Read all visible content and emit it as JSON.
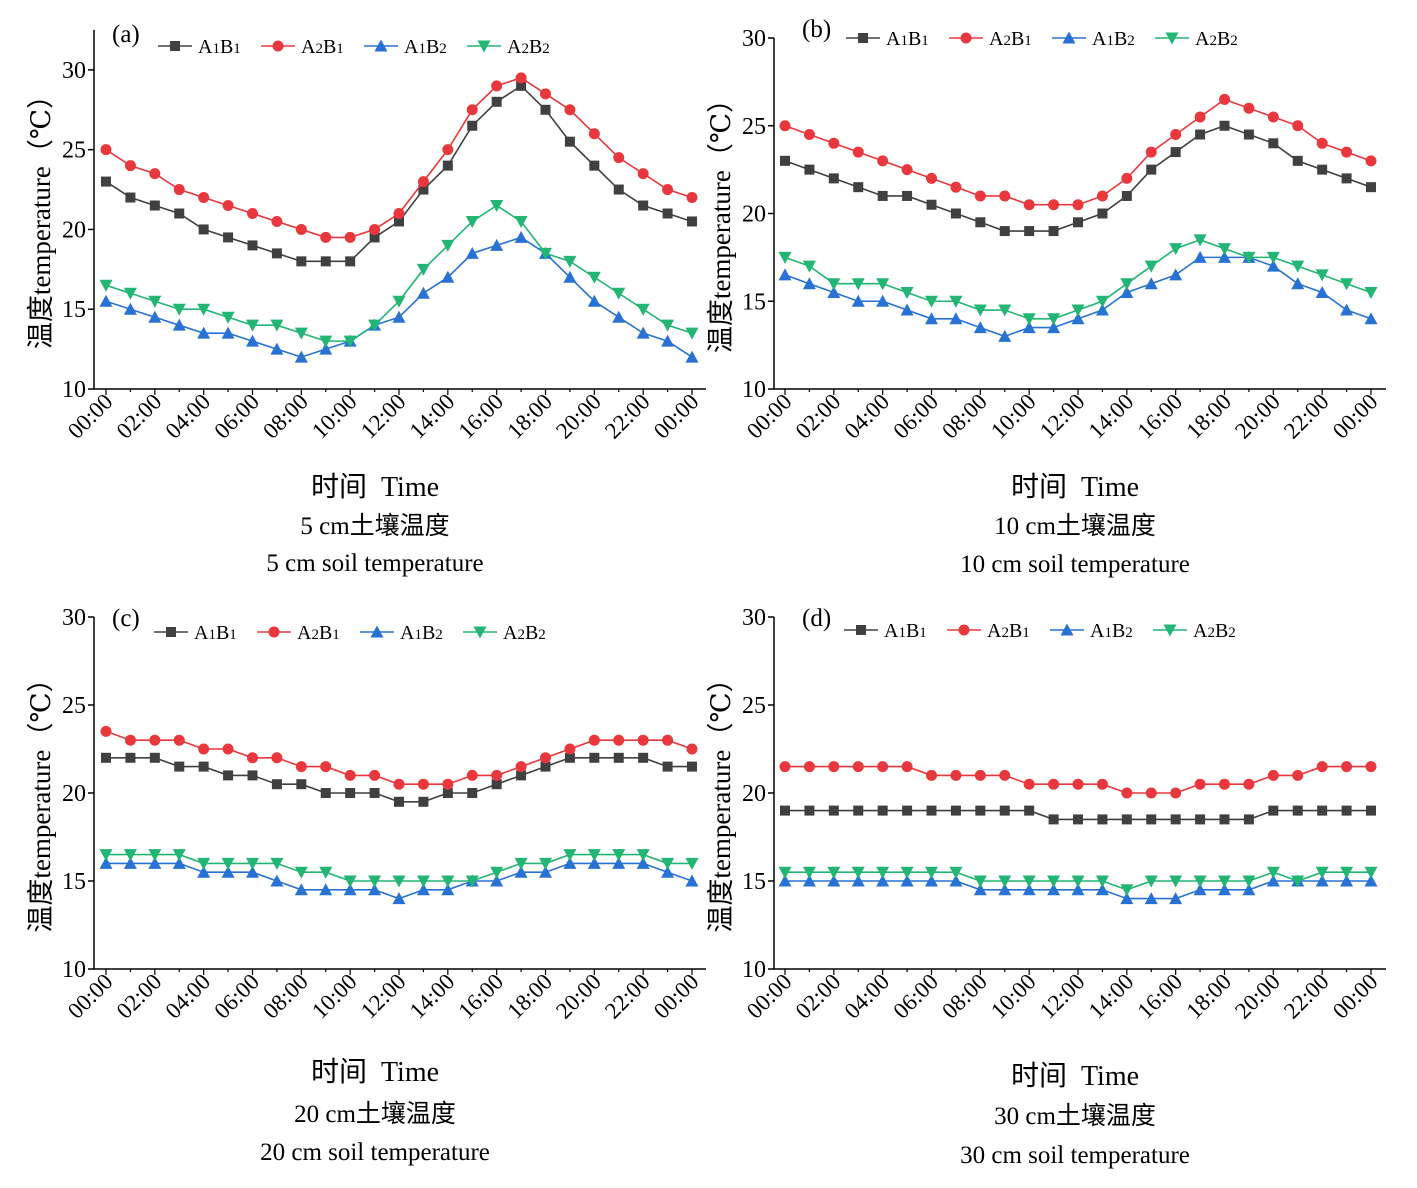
{
  "chart_data": [
    {
      "type": "line",
      "panel_label": "(a)",
      "title": "5 cm土壤温度",
      "subtitle": "5 cm soil temperature",
      "xlabel": "时间  Time",
      "ylabel": "温度temperature（℃）",
      "ylim": [
        10,
        32.5
      ],
      "yticks": [
        10,
        15,
        20,
        25,
        30
      ],
      "x": [
        "00:00",
        "01:00",
        "02:00",
        "03:00",
        "04:00",
        "05:00",
        "06:00",
        "07:00",
        "08:00",
        "09:00",
        "10:00",
        "11:00",
        "12:00",
        "13:00",
        "14:00",
        "15:00",
        "16:00",
        "17:00",
        "18:00",
        "19:00",
        "20:00",
        "21:00",
        "22:00",
        "23:00",
        "00:00"
      ],
      "xtick_labels": [
        "00:00",
        "02:00",
        "04:00",
        "06:00",
        "08:00",
        "10:00",
        "12:00",
        "14:00",
        "16:00",
        "18:00",
        "20:00",
        "22:00",
        "00:00"
      ],
      "legend_position": "top-left",
      "series": [
        {
          "name": "A1B1",
          "color": "#404040",
          "marker": "square",
          "values": [
            23,
            22,
            21.5,
            21,
            20,
            19.5,
            19,
            18.5,
            18,
            18,
            18,
            19.5,
            20.5,
            22.5,
            24,
            26.5,
            28,
            29,
            27.5,
            25.5,
            24,
            22.5,
            21.5,
            21,
            20.5
          ]
        },
        {
          "name": "A2B1",
          "color": "#e8383d",
          "marker": "circle",
          "values": [
            25,
            24,
            23.5,
            22.5,
            22,
            21.5,
            21,
            20.5,
            20,
            19.5,
            19.5,
            20,
            21,
            23,
            25,
            27.5,
            29,
            29.5,
            28.5,
            27.5,
            26,
            24.5,
            23.5,
            22.5,
            22
          ]
        },
        {
          "name": "A1B2",
          "color": "#2872d4",
          "marker": "triangle-up",
          "values": [
            15.5,
            15,
            14.5,
            14,
            13.5,
            13.5,
            13,
            12.5,
            12,
            12.5,
            13,
            14,
            14.5,
            16,
            17,
            18.5,
            19,
            19.5,
            18.5,
            17,
            15.5,
            14.5,
            13.5,
            13,
            12
          ]
        },
        {
          "name": "A2B2",
          "color": "#22b573",
          "marker": "triangle-down",
          "values": [
            16.5,
            16,
            15.5,
            15,
            15,
            14.5,
            14,
            14,
            13.5,
            13,
            13,
            14,
            15.5,
            17.5,
            19,
            20.5,
            21.5,
            20.5,
            18.5,
            18,
            17,
            16,
            15,
            14,
            13.5
          ]
        }
      ]
    },
    {
      "type": "line",
      "panel_label": "(b)",
      "title": "10 cm土壤温度",
      "subtitle": "10 cm soil temperature",
      "xlabel": "时间  Time",
      "ylabel": "温度temperature（℃）",
      "ylim": [
        10,
        30
      ],
      "yticks": [
        10,
        15,
        20,
        25,
        30
      ],
      "x": [
        "00:00",
        "01:00",
        "02:00",
        "03:00",
        "04:00",
        "05:00",
        "06:00",
        "07:00",
        "08:00",
        "09:00",
        "10:00",
        "11:00",
        "12:00",
        "13:00",
        "14:00",
        "15:00",
        "16:00",
        "17:00",
        "18:00",
        "19:00",
        "20:00",
        "21:00",
        "22:00",
        "23:00",
        "00:00"
      ],
      "xtick_labels": [
        "00:00",
        "02:00",
        "04:00",
        "06:00",
        "08:00",
        "10:00",
        "12:00",
        "14:00",
        "16:00",
        "18:00",
        "20:00",
        "22:00",
        "00:00"
      ],
      "legend_position": "top-left",
      "series": [
        {
          "name": "A1B1",
          "color": "#404040",
          "marker": "square",
          "values": [
            23,
            22.5,
            22,
            21.5,
            21,
            21,
            20.5,
            20,
            19.5,
            19,
            19,
            19,
            19.5,
            20,
            21,
            22.5,
            23.5,
            24.5,
            25,
            24.5,
            24,
            23,
            22.5,
            22,
            21.5
          ]
        },
        {
          "name": "A2B1",
          "color": "#e8383d",
          "marker": "circle",
          "values": [
            25,
            24.5,
            24,
            23.5,
            23,
            22.5,
            22,
            21.5,
            21,
            21,
            20.5,
            20.5,
            20.5,
            21,
            22,
            23.5,
            24.5,
            25.5,
            26.5,
            26,
            25.5,
            25,
            24,
            23.5,
            23
          ]
        },
        {
          "name": "A1B2",
          "color": "#2872d4",
          "marker": "triangle-up",
          "values": [
            16.5,
            16,
            15.5,
            15,
            15,
            14.5,
            14,
            14,
            13.5,
            13,
            13.5,
            13.5,
            14,
            14.5,
            15.5,
            16,
            16.5,
            17.5,
            17.5,
            17.5,
            17,
            16,
            15.5,
            14.5,
            14
          ]
        },
        {
          "name": "A2B2",
          "color": "#22b573",
          "marker": "triangle-down",
          "values": [
            17.5,
            17,
            16,
            16,
            16,
            15.5,
            15,
            15,
            14.5,
            14.5,
            14,
            14,
            14.5,
            15,
            16,
            17,
            18,
            18.5,
            18,
            17.5,
            17.5,
            17,
            16.5,
            16,
            15.5
          ]
        }
      ]
    },
    {
      "type": "line",
      "panel_label": "(c)",
      "title": "20 cm土壤温度",
      "subtitle": "20 cm soil temperature",
      "xlabel": "时间  Time",
      "ylabel": "温度temperature（℃）",
      "ylim": [
        10,
        30
      ],
      "yticks": [
        10,
        15,
        20,
        25,
        30
      ],
      "x": [
        "00:00",
        "01:00",
        "02:00",
        "03:00",
        "04:00",
        "05:00",
        "06:00",
        "07:00",
        "08:00",
        "09:00",
        "10:00",
        "11:00",
        "12:00",
        "13:00",
        "14:00",
        "15:00",
        "16:00",
        "17:00",
        "18:00",
        "19:00",
        "20:00",
        "21:00",
        "22:00",
        "23:00",
        "00:00"
      ],
      "xtick_labels": [
        "00:00",
        "02:00",
        "04:00",
        "06:00",
        "08:00",
        "10:00",
        "12:00",
        "14:00",
        "16:00",
        "18:00",
        "20:00",
        "22:00",
        "00:00"
      ],
      "legend_position": "top-left",
      "series": [
        {
          "name": "A1B1",
          "color": "#404040",
          "marker": "square",
          "values": [
            22,
            22,
            22,
            21.5,
            21.5,
            21,
            21,
            20.5,
            20.5,
            20,
            20,
            20,
            19.5,
            19.5,
            20,
            20,
            20.5,
            21,
            21.5,
            22,
            22,
            22,
            22,
            21.5,
            21.5
          ]
        },
        {
          "name": "A2B1",
          "color": "#e8383d",
          "marker": "circle",
          "values": [
            23.5,
            23,
            23,
            23,
            22.5,
            22.5,
            22,
            22,
            21.5,
            21.5,
            21,
            21,
            20.5,
            20.5,
            20.5,
            21,
            21,
            21.5,
            22,
            22.5,
            23,
            23,
            23,
            23,
            22.5
          ]
        },
        {
          "name": "A1B2",
          "color": "#2872d4",
          "marker": "triangle-up",
          "values": [
            16,
            16,
            16,
            16,
            15.5,
            15.5,
            15.5,
            15,
            14.5,
            14.5,
            14.5,
            14.5,
            14,
            14.5,
            14.5,
            15,
            15,
            15.5,
            15.5,
            16,
            16,
            16,
            16,
            15.5,
            15
          ]
        },
        {
          "name": "A2B2",
          "color": "#22b573",
          "marker": "triangle-down",
          "values": [
            16.5,
            16.5,
            16.5,
            16.5,
            16,
            16,
            16,
            16,
            15.5,
            15.5,
            15,
            15,
            15,
            15,
            15,
            15,
            15.5,
            16,
            16,
            16.5,
            16.5,
            16.5,
            16.5,
            16,
            16
          ]
        }
      ]
    },
    {
      "type": "line",
      "panel_label": "(d)",
      "title": "30 cm土壤温度",
      "subtitle": "30 cm soil temperature",
      "xlabel": "时间  Time",
      "ylabel": "温度temperature（℃）",
      "ylim": [
        10,
        30
      ],
      "yticks": [
        10,
        15,
        20,
        25,
        30
      ],
      "x": [
        "00:00",
        "01:00",
        "02:00",
        "03:00",
        "04:00",
        "05:00",
        "06:00",
        "07:00",
        "08:00",
        "09:00",
        "10:00",
        "11:00",
        "12:00",
        "13:00",
        "14:00",
        "15:00",
        "16:00",
        "17:00",
        "18:00",
        "19:00",
        "20:00",
        "21:00",
        "22:00",
        "23:00",
        "00:00"
      ],
      "xtick_labels": [
        "00:00",
        "02:00",
        "04:00",
        "06:00",
        "08:00",
        "10:00",
        "12:00",
        "14:00",
        "16:00",
        "18:00",
        "20:00",
        "22:00",
        "00:00"
      ],
      "legend_position": "top-left",
      "series": [
        {
          "name": "A1B1",
          "color": "#404040",
          "marker": "square",
          "values": [
            19,
            19,
            19,
            19,
            19,
            19,
            19,
            19,
            19,
            19,
            19,
            18.5,
            18.5,
            18.5,
            18.5,
            18.5,
            18.5,
            18.5,
            18.5,
            18.5,
            19,
            19,
            19,
            19,
            19
          ]
        },
        {
          "name": "A2B1",
          "color": "#e8383d",
          "marker": "circle",
          "values": [
            21.5,
            21.5,
            21.5,
            21.5,
            21.5,
            21.5,
            21,
            21,
            21,
            21,
            20.5,
            20.5,
            20.5,
            20.5,
            20,
            20,
            20,
            20.5,
            20.5,
            20.5,
            21,
            21,
            21.5,
            21.5,
            21.5
          ]
        },
        {
          "name": "A1B2",
          "color": "#2872d4",
          "marker": "triangle-up",
          "values": [
            15,
            15,
            15,
            15,
            15,
            15,
            15,
            15,
            14.5,
            14.5,
            14.5,
            14.5,
            14.5,
            14.5,
            14,
            14,
            14,
            14.5,
            14.5,
            14.5,
            15,
            15,
            15,
            15,
            15
          ]
        },
        {
          "name": "A2B2",
          "color": "#22b573",
          "marker": "triangle-down",
          "values": [
            15.5,
            15.5,
            15.5,
            15.5,
            15.5,
            15.5,
            15.5,
            15.5,
            15,
            15,
            15,
            15,
            15,
            15,
            14.5,
            15,
            15,
            15,
            15,
            15,
            15.5,
            15,
            15.5,
            15.5,
            15.5
          ]
        }
      ]
    }
  ]
}
